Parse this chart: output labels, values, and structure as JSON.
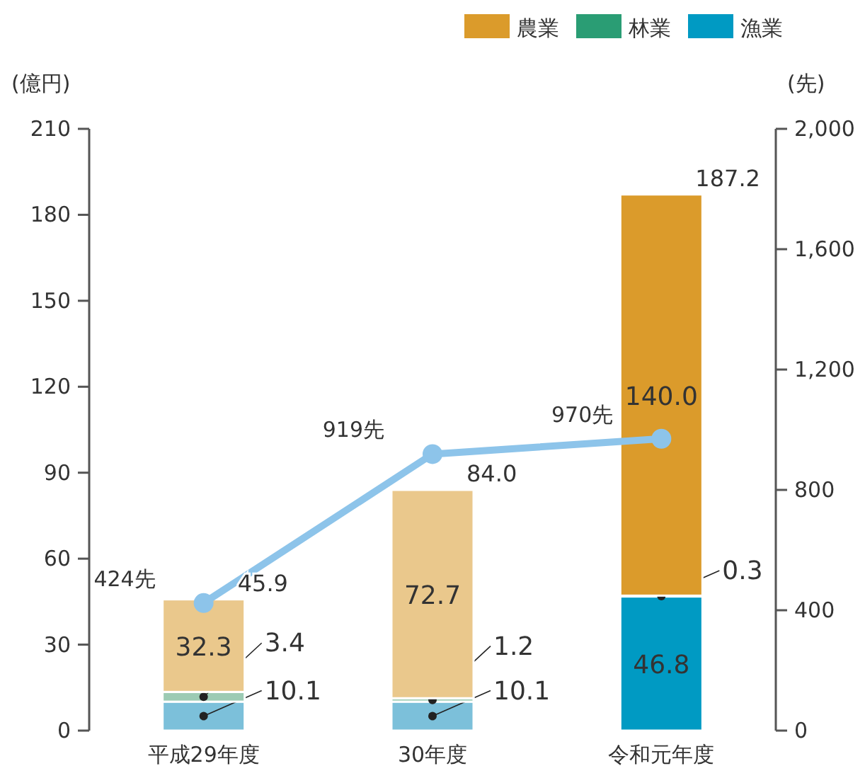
{
  "chart_data": {
    "type": "bar",
    "stacked": true,
    "ylabel": "(億円)",
    "y2label": "(先)",
    "categories": [
      "平成29年度",
      "30年度",
      "令和元年度"
    ],
    "ylim": [
      0,
      210
    ],
    "yticks": [
      0,
      30,
      60,
      90,
      120,
      150,
      180,
      210
    ],
    "y2lim": [
      0,
      2000
    ],
    "y2ticks": [
      0,
      {
        "value": 400,
        "label": "400"
      },
      {
        "value": 800,
        "label": "800"
      },
      {
        "value": 1200,
        "label": "1,200"
      },
      {
        "value": 1600,
        "label": "1,600"
      },
      {
        "value": 2000,
        "label": "2,000"
      }
    ],
    "legend": "top right",
    "totals": [
      "45.9",
      "84.0",
      "187.2"
    ],
    "series": [
      {
        "name": "漁業",
        "color": "#009ac3",
        "colors": [
          "#7cc0da",
          "#7cc0da",
          "#009ac3"
        ],
        "values": [
          10.1,
          10.1,
          46.8
        ],
        "value_labels": [
          "10.1",
          "10.1",
          "46.8"
        ]
      },
      {
        "name": "林業",
        "color": "#2a9d74",
        "colors": [
          "#9ccbb4",
          "#9ccbb4",
          "#2a9d74"
        ],
        "values": [
          3.4,
          1.2,
          0.3
        ],
        "value_labels": [
          "3.4",
          "1.2",
          "0.3"
        ]
      },
      {
        "name": "農業",
        "color": "#db9b2b",
        "colors": [
          "#eac88c",
          "#eac88c",
          "#db9b2b"
        ],
        "values": [
          32.3,
          72.7,
          140.0
        ],
        "value_labels": [
          "32.3",
          "72.7",
          "140.0"
        ]
      },
      {
        "type": "line",
        "axis": "y2",
        "color": "#8dc4ea",
        "marker": "circle",
        "values": [
          424,
          919,
          970
        ],
        "value_labels": [
          "424先",
          "919先",
          "970先"
        ]
      }
    ]
  }
}
